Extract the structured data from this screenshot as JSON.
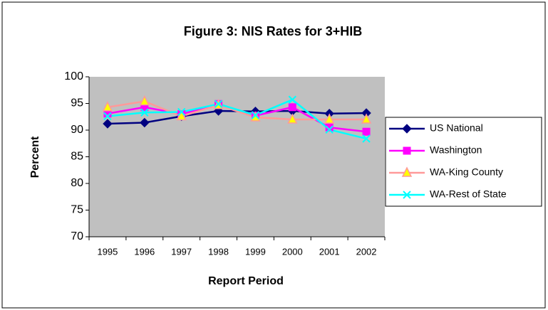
{
  "chart_data": {
    "type": "line",
    "title": "Figure 3: NIS Rates for 3+HIB",
    "x_label": "Report Period",
    "y_label": "Percent",
    "categories": [
      "1995",
      "1996",
      "1997",
      "1998",
      "1999",
      "2000",
      "2001",
      "2002"
    ],
    "series": [
      {
        "name": "US National",
        "color": "#000080",
        "marker_fill": "#000080",
        "marker": "diamond",
        "values": [
          91.2,
          91.4,
          92.6,
          93.6,
          93.5,
          93.6,
          93.1,
          93.2
        ]
      },
      {
        "name": "Washington",
        "color": "#ff00ff",
        "marker_fill": "#ff00ff",
        "marker": "square",
        "values": [
          93.1,
          94.3,
          93.0,
          94.9,
          92.7,
          94.3,
          90.5,
          89.7
        ]
      },
      {
        "name": "WA-King County",
        "color": "#ff9999",
        "marker_fill": "#ffff00",
        "marker": "triangle",
        "values": [
          94.3,
          95.4,
          92.6,
          94.7,
          92.4,
          92.0,
          92.0,
          92.0
        ]
      },
      {
        "name": "WA-Rest of State",
        "color": "#00ffff",
        "marker_fill": "#00ffff",
        "marker": "x",
        "values": [
          92.6,
          93.3,
          93.4,
          94.9,
          92.8,
          95.7,
          90.1,
          88.4
        ]
      }
    ],
    "ylim": [
      70,
      100
    ],
    "yticks": [
      70,
      75,
      80,
      85,
      90,
      95,
      100
    ],
    "plot_background": "#c0c0c0",
    "legend": "right"
  }
}
